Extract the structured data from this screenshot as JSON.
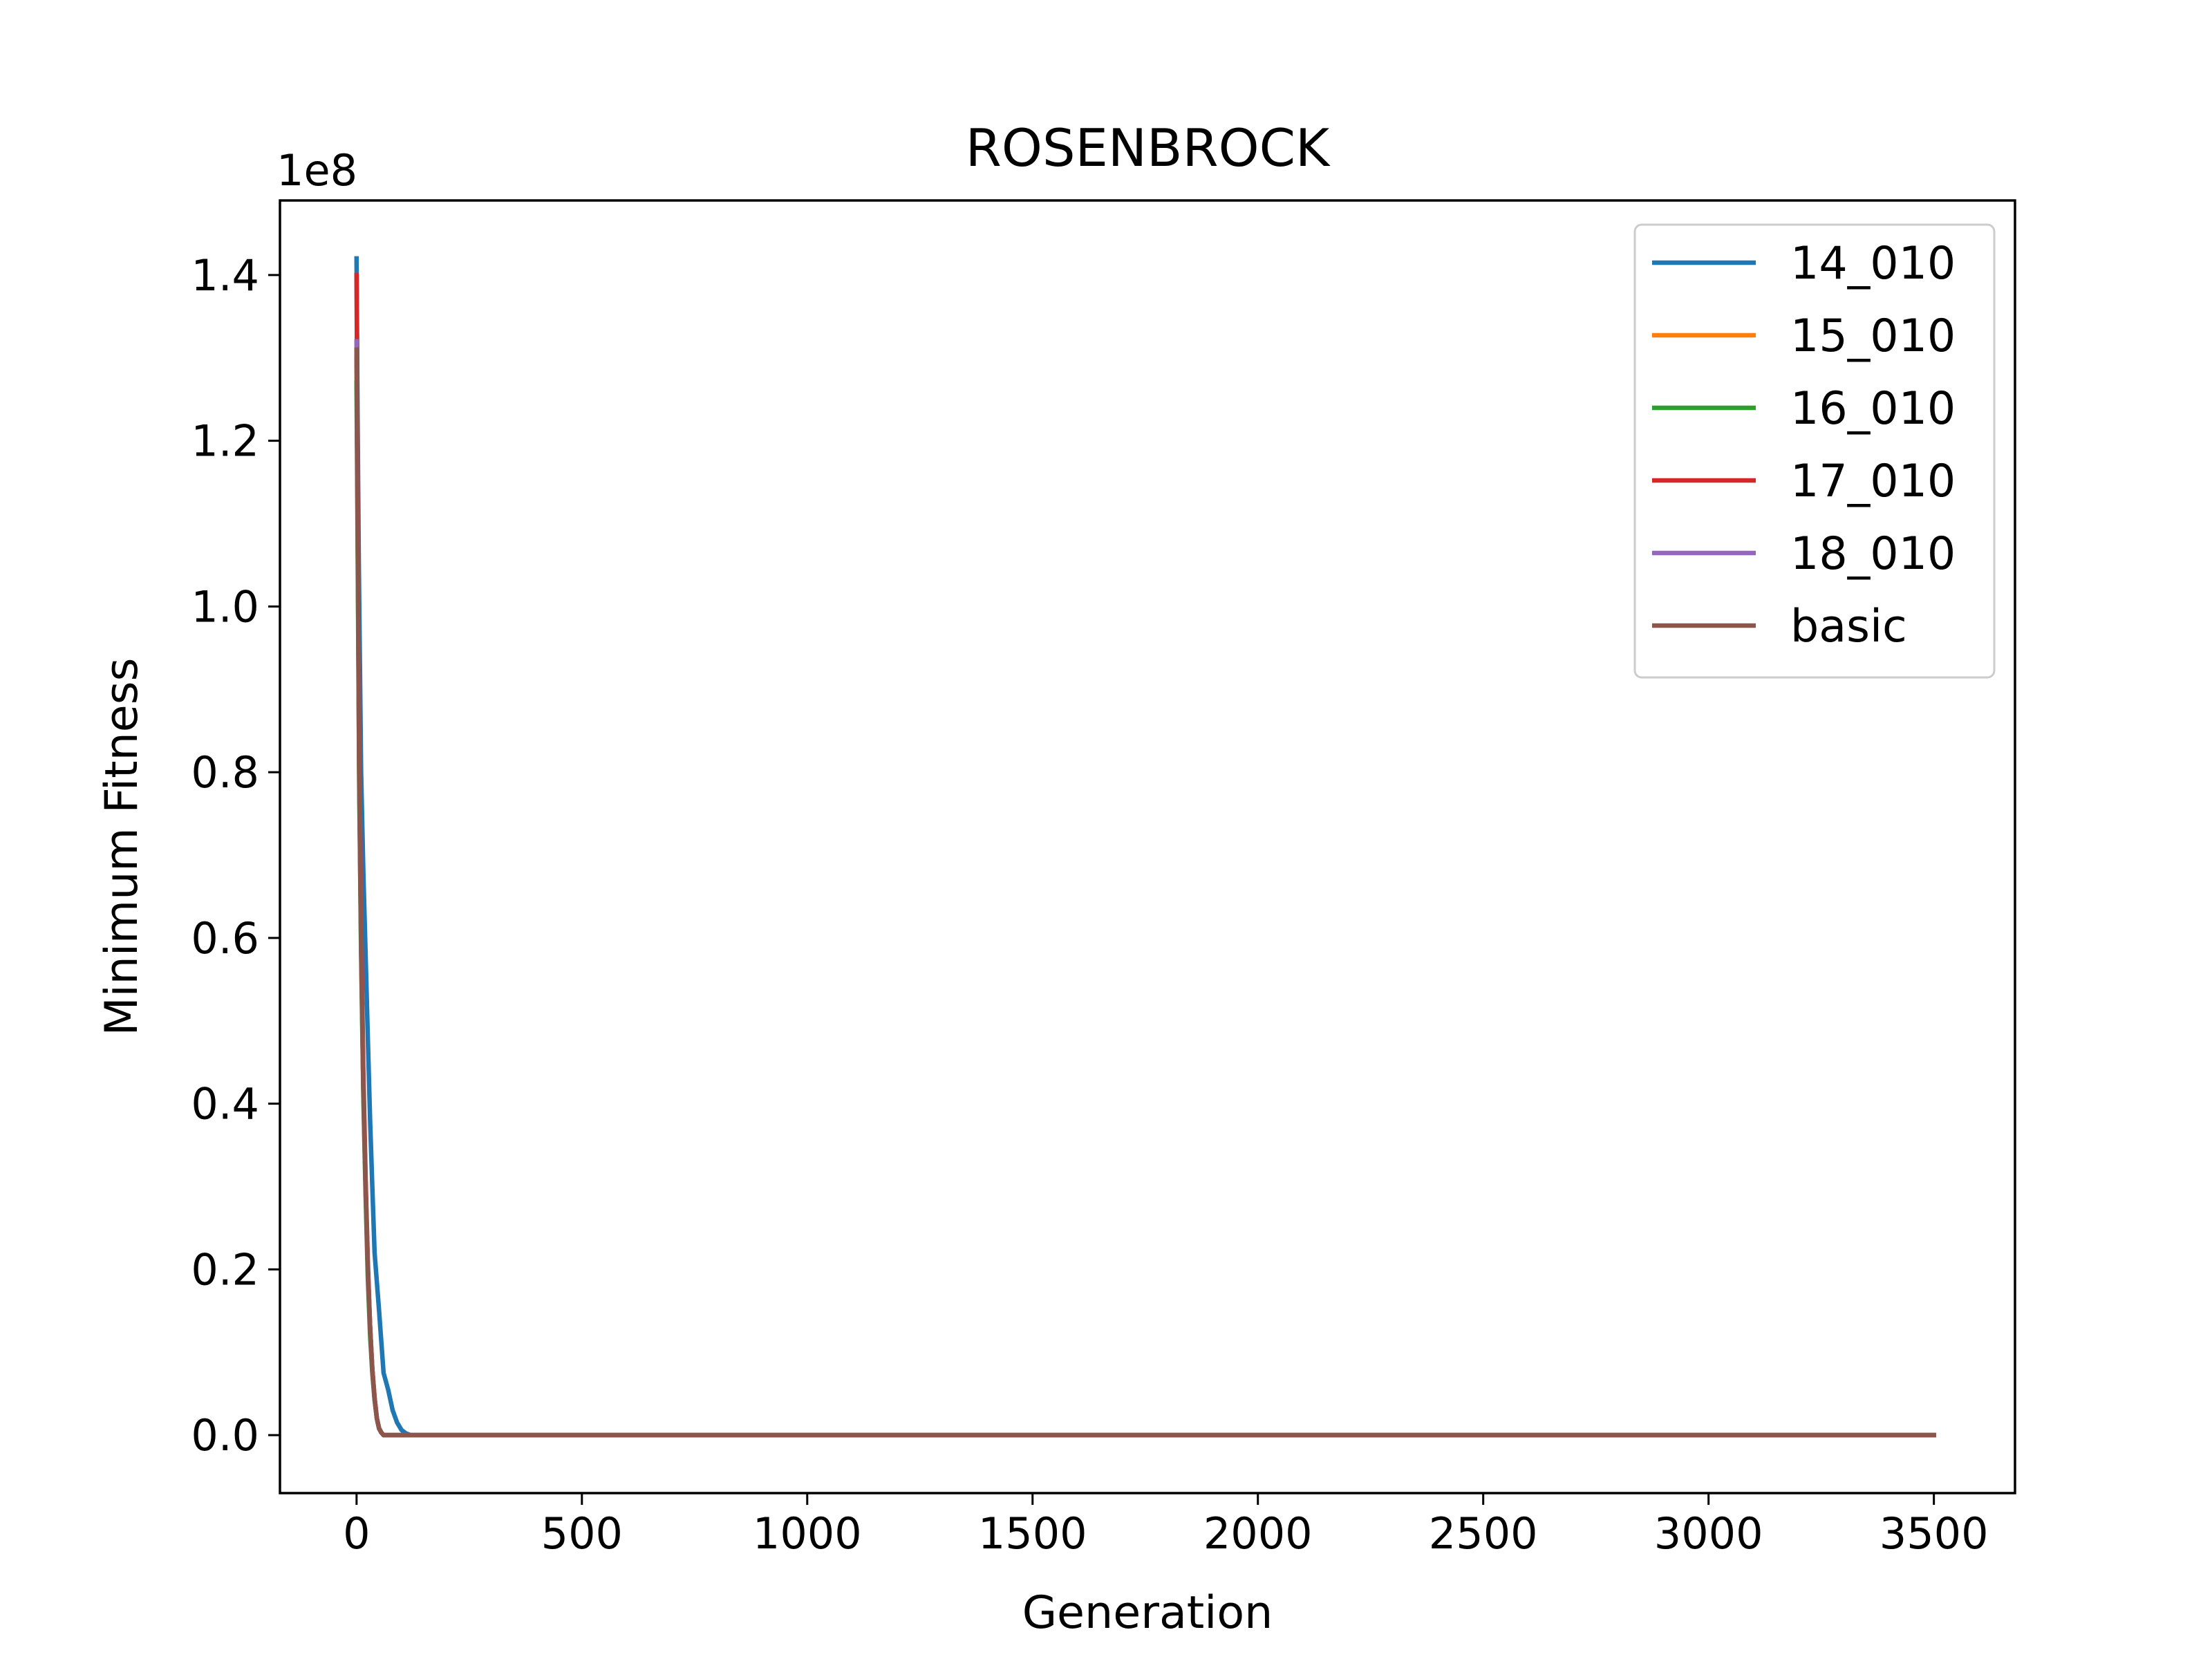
{
  "chart_data": {
    "type": "line",
    "title": "ROSENBROCK",
    "xlabel": "Generation",
    "ylabel": "Minimum Fitness",
    "y_offset_label": "1e8",
    "xlim": [
      -170,
      3680
    ],
    "ylim": [
      -0.07,
      1.49
    ],
    "x_ticks": [
      0,
      500,
      1000,
      1500,
      2000,
      2500,
      3000,
      3500
    ],
    "x_tick_labels": [
      "0",
      "500",
      "1000",
      "1500",
      "2000",
      "2500",
      "3000",
      "3500"
    ],
    "y_ticks": [
      0.0,
      0.2,
      0.4,
      0.6,
      0.8,
      1.0,
      1.2,
      1.4
    ],
    "y_tick_labels": [
      "0.0",
      "0.2",
      "0.4",
      "0.6",
      "0.8",
      "1.0",
      "1.2",
      "1.4"
    ],
    "grid": false,
    "legend_position": "top-right",
    "series": [
      {
        "name": "14_010",
        "color": "#1f77b4",
        "x": [
          0,
          2,
          5,
          10,
          15,
          20,
          25,
          30,
          35,
          40,
          50,
          60,
          70,
          80,
          90,
          100,
          110,
          120,
          150,
          200,
          500,
          1000,
          1500,
          2000,
          2500,
          3000,
          3500
        ],
        "y": [
          1.42,
          1.25,
          1.05,
          0.8,
          0.68,
          0.58,
          0.48,
          0.38,
          0.3,
          0.22,
          0.15,
          0.075,
          0.055,
          0.03,
          0.015,
          0.006,
          0.002,
          0.0,
          0.0,
          0.0,
          0.0,
          0.0,
          0.0,
          0.0,
          0.0,
          0.0,
          0.0
        ]
      },
      {
        "name": "15_010",
        "color": "#ff7f0e",
        "x": [
          0,
          3,
          6,
          10,
          15,
          20,
          25,
          30,
          35,
          40,
          45,
          50,
          55,
          60,
          70,
          100,
          500,
          1000,
          1500,
          2000,
          2500,
          3000,
          3500
        ],
        "y": [
          1.3,
          1.05,
          0.8,
          0.6,
          0.42,
          0.3,
          0.2,
          0.13,
          0.08,
          0.045,
          0.02,
          0.008,
          0.003,
          0.0,
          0.0,
          0.0,
          0.0,
          0.0,
          0.0,
          0.0,
          0.0,
          0.0,
          0.0
        ]
      },
      {
        "name": "16_010",
        "color": "#2ca02c",
        "x": [
          0,
          3,
          6,
          10,
          15,
          20,
          25,
          30,
          35,
          40,
          45,
          50,
          55,
          60,
          70,
          100,
          500,
          1000,
          1500,
          2000,
          2500,
          3000,
          3500
        ],
        "y": [
          1.27,
          1.02,
          0.78,
          0.58,
          0.41,
          0.29,
          0.19,
          0.12,
          0.075,
          0.042,
          0.02,
          0.008,
          0.003,
          0.0,
          0.0,
          0.0,
          0.0,
          0.0,
          0.0,
          0.0,
          0.0,
          0.0,
          0.0
        ]
      },
      {
        "name": "17_010",
        "color": "#d62728",
        "x": [
          0,
          3,
          6,
          10,
          15,
          20,
          25,
          30,
          35,
          40,
          45,
          50,
          55,
          60,
          70,
          100,
          500,
          1000,
          1500,
          2000,
          2500,
          3000,
          3500
        ],
        "y": [
          1.4,
          1.1,
          0.83,
          0.62,
          0.44,
          0.31,
          0.21,
          0.13,
          0.08,
          0.045,
          0.02,
          0.008,
          0.003,
          0.0,
          0.0,
          0.0,
          0.0,
          0.0,
          0.0,
          0.0,
          0.0,
          0.0,
          0.0
        ]
      },
      {
        "name": "18_010",
        "color": "#9467bd",
        "x": [
          0,
          3,
          6,
          10,
          15,
          20,
          25,
          30,
          35,
          40,
          45,
          50,
          55,
          60,
          70,
          100,
          500,
          1000,
          1500,
          2000,
          2500,
          3000,
          3500
        ],
        "y": [
          1.32,
          1.06,
          0.8,
          0.6,
          0.42,
          0.3,
          0.2,
          0.13,
          0.078,
          0.044,
          0.02,
          0.008,
          0.003,
          0.0,
          0.0,
          0.0,
          0.0,
          0.0,
          0.0,
          0.0,
          0.0,
          0.0,
          0.0
        ]
      },
      {
        "name": "basic",
        "color": "#8c564b",
        "x": [
          0,
          3,
          6,
          10,
          15,
          20,
          25,
          30,
          35,
          40,
          45,
          50,
          55,
          60,
          70,
          100,
          500,
          1000,
          1500,
          2000,
          2500,
          3000,
          3500
        ],
        "y": [
          1.31,
          1.05,
          0.79,
          0.59,
          0.42,
          0.3,
          0.2,
          0.13,
          0.078,
          0.044,
          0.02,
          0.008,
          0.003,
          0.0,
          0.0,
          0.0,
          0.0,
          0.0,
          0.0,
          0.0,
          0.0,
          0.0,
          0.0
        ]
      }
    ]
  }
}
